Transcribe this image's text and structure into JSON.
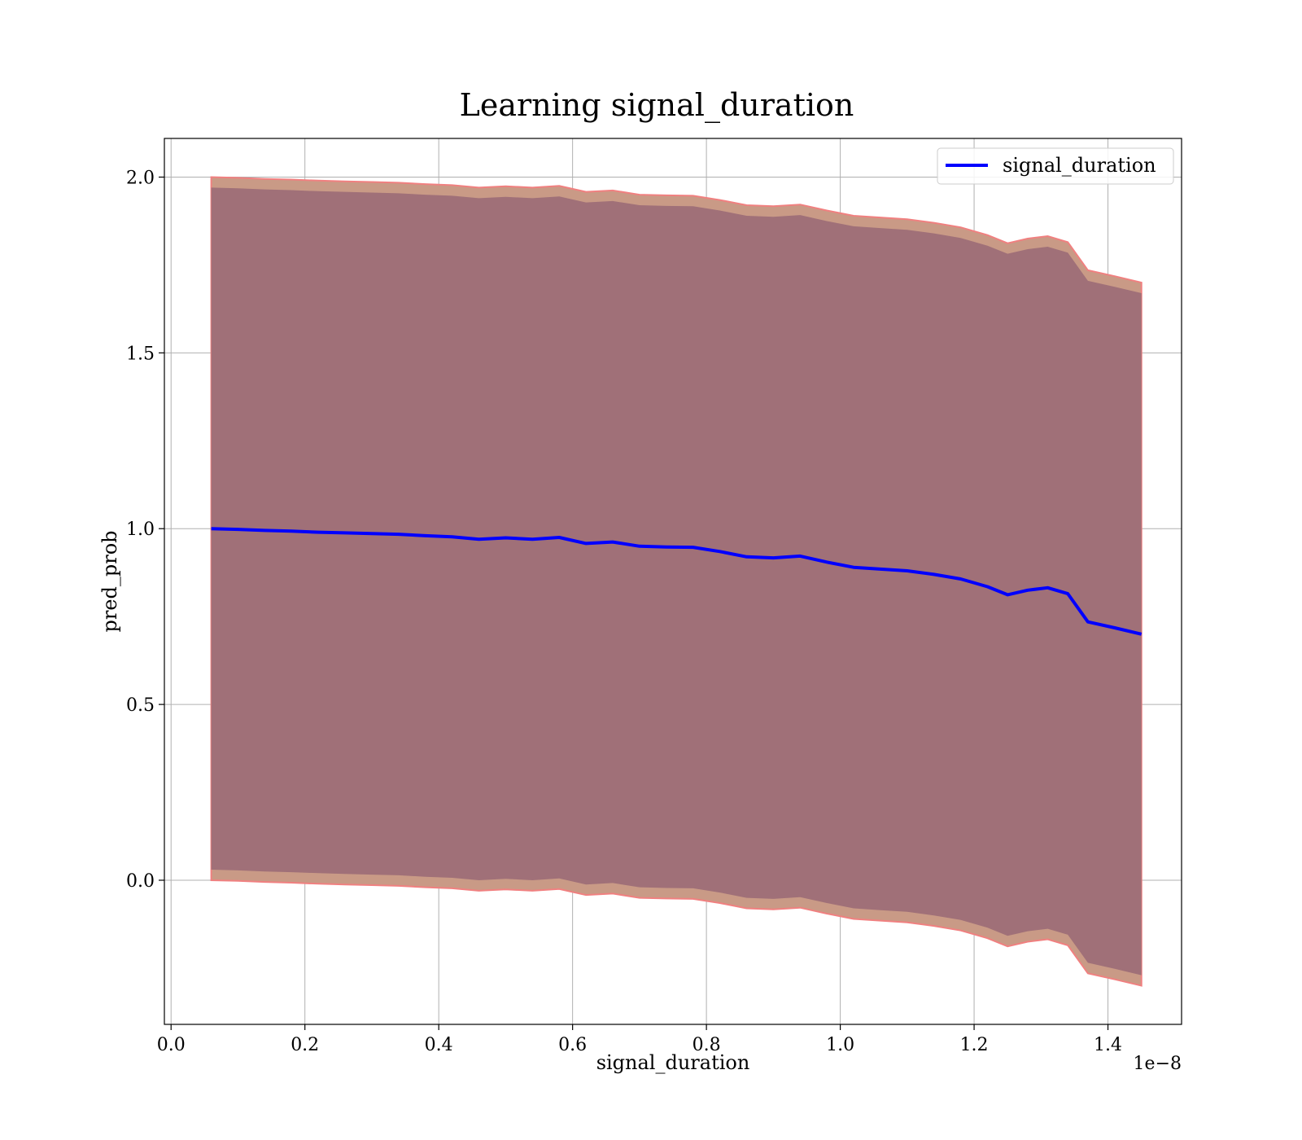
{
  "chart_data": {
    "type": "line",
    "title": "Learning signal_duration",
    "xlabel": "signal_duration",
    "ylabel": "pred_prob",
    "x_offset_text": "1e−8",
    "xlim": [
      -0.01,
      1.51
    ],
    "ylim": [
      -0.41,
      2.11
    ],
    "x_ticks": [
      0.0,
      0.2,
      0.4,
      0.6,
      0.8,
      1.0,
      1.2,
      1.4
    ],
    "x_tick_labels": [
      "0.0",
      "0.2",
      "0.4",
      "0.6",
      "0.8",
      "1.0",
      "1.2",
      "1.4"
    ],
    "y_ticks": [
      0.0,
      0.5,
      1.0,
      1.5,
      2.0
    ],
    "y_tick_labels": [
      "0.0",
      "0.5",
      "1.0",
      "1.5",
      "2.0"
    ],
    "grid": true,
    "legend": {
      "placement": "top-right",
      "entries": [
        "signal_duration"
      ]
    },
    "colors": {
      "line": "#0000ff",
      "band_outer_fill": "#c99a86",
      "band_outer_edge": "#f08080",
      "band_inner_fill": "#a07078"
    },
    "series": [
      {
        "name": "signal_duration",
        "x": [
          0.06,
          0.1,
          0.14,
          0.18,
          0.22,
          0.26,
          0.3,
          0.34,
          0.38,
          0.42,
          0.46,
          0.5,
          0.54,
          0.58,
          0.62,
          0.66,
          0.7,
          0.74,
          0.78,
          0.82,
          0.86,
          0.9,
          0.94,
          0.98,
          1.02,
          1.06,
          1.1,
          1.14,
          1.18,
          1.22,
          1.25,
          1.28,
          1.31,
          1.34,
          1.37,
          1.41,
          1.45
        ],
        "y": [
          1.0,
          0.998,
          0.995,
          0.993,
          0.99,
          0.988,
          0.986,
          0.984,
          0.98,
          0.977,
          0.97,
          0.974,
          0.97,
          0.975,
          0.958,
          0.962,
          0.95,
          0.948,
          0.947,
          0.935,
          0.92,
          0.917,
          0.922,
          0.905,
          0.89,
          0.885,
          0.88,
          0.87,
          0.857,
          0.835,
          0.812,
          0.825,
          0.832,
          0.815,
          0.735,
          0.718,
          0.7
        ]
      }
    ],
    "bands": [
      {
        "x": [
          0.06,
          0.1,
          0.14,
          0.18,
          0.22,
          0.26,
          0.3,
          0.34,
          0.38,
          0.42,
          0.46,
          0.5,
          0.54,
          0.58,
          0.62,
          0.66,
          0.7,
          0.74,
          0.78,
          0.82,
          0.86,
          0.9,
          0.94,
          0.98,
          1.02,
          1.06,
          1.1,
          1.14,
          1.18,
          1.22,
          1.25,
          1.28,
          1.31,
          1.34,
          1.37,
          1.41,
          1.45
        ],
        "upper": [
          2.0,
          1.998,
          1.995,
          1.993,
          1.99,
          1.988,
          1.986,
          1.984,
          1.98,
          1.977,
          1.97,
          1.974,
          1.97,
          1.975,
          1.958,
          1.962,
          1.95,
          1.948,
          1.947,
          1.935,
          1.92,
          1.917,
          1.922,
          1.905,
          1.89,
          1.885,
          1.88,
          1.87,
          1.857,
          1.835,
          1.812,
          1.825,
          1.832,
          1.815,
          1.735,
          1.718,
          1.7
        ],
        "lower": [
          0.0,
          -0.002,
          -0.005,
          -0.007,
          -0.01,
          -0.012,
          -0.014,
          -0.016,
          -0.02,
          -0.023,
          -0.03,
          -0.026,
          -0.03,
          -0.025,
          -0.042,
          -0.038,
          -0.05,
          -0.052,
          -0.053,
          -0.065,
          -0.08,
          -0.083,
          -0.078,
          -0.095,
          -0.11,
          -0.115,
          -0.12,
          -0.13,
          -0.143,
          -0.165,
          -0.188,
          -0.175,
          -0.168,
          -0.185,
          -0.265,
          -0.282,
          -0.3
        ],
        "inner_upper": [
          1.97,
          1.968,
          1.965,
          1.963,
          1.96,
          1.958,
          1.956,
          1.954,
          1.95,
          1.947,
          1.94,
          1.944,
          1.94,
          1.945,
          1.928,
          1.932,
          1.92,
          1.918,
          1.917,
          1.905,
          1.89,
          1.887,
          1.892,
          1.875,
          1.86,
          1.855,
          1.85,
          1.84,
          1.827,
          1.805,
          1.782,
          1.795,
          1.802,
          1.785,
          1.705,
          1.688,
          1.67
        ],
        "inner_lower": [
          0.03,
          0.028,
          0.025,
          0.023,
          0.02,
          0.018,
          0.016,
          0.014,
          0.01,
          0.007,
          0.0,
          0.004,
          0.0,
          0.005,
          -0.012,
          -0.008,
          -0.02,
          -0.022,
          -0.023,
          -0.035,
          -0.05,
          -0.053,
          -0.048,
          -0.065,
          -0.08,
          -0.085,
          -0.09,
          -0.1,
          -0.113,
          -0.135,
          -0.158,
          -0.145,
          -0.138,
          -0.155,
          -0.235,
          -0.252,
          -0.27
        ]
      }
    ]
  }
}
